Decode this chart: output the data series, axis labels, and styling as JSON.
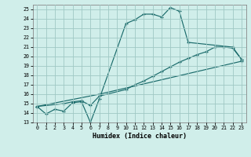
{
  "xlabel": "Humidex (Indice chaleur)",
  "xlim": [
    -0.5,
    23.5
  ],
  "ylim": [
    13,
    25.5
  ],
  "xticks": [
    0,
    1,
    2,
    3,
    4,
    5,
    6,
    7,
    8,
    9,
    10,
    11,
    12,
    13,
    14,
    15,
    16,
    17,
    18,
    19,
    20,
    21,
    22,
    23
  ],
  "yticks": [
    13,
    14,
    15,
    16,
    17,
    18,
    19,
    20,
    21,
    22,
    23,
    24,
    25
  ],
  "bg_color": "#d0eeea",
  "grid_color": "#a0c8c4",
  "line_color": "#1a6b6b",
  "line1_x": [
    0,
    1,
    2,
    3,
    4,
    5,
    6,
    7,
    10,
    11,
    12,
    13,
    14,
    15,
    16,
    17,
    22,
    23
  ],
  "line1_y": [
    14.7,
    13.9,
    14.4,
    14.2,
    15.1,
    15.2,
    13.0,
    15.5,
    23.5,
    23.9,
    24.5,
    24.5,
    24.2,
    25.2,
    24.8,
    21.5,
    21.0,
    19.7
  ],
  "line2_x": [
    0,
    3,
    4,
    5,
    6,
    7,
    10,
    11,
    12,
    13,
    14,
    15,
    16,
    17,
    18,
    19,
    20,
    21,
    22,
    23
  ],
  "line2_y": [
    14.7,
    15.0,
    15.2,
    15.3,
    14.8,
    15.8,
    16.5,
    17.0,
    17.4,
    17.9,
    18.4,
    18.9,
    19.4,
    19.8,
    20.2,
    20.5,
    21.0,
    21.0,
    20.9,
    19.7
  ],
  "line3_x": [
    0,
    7,
    23
  ],
  "line3_y": [
    14.7,
    16.0,
    19.5
  ]
}
